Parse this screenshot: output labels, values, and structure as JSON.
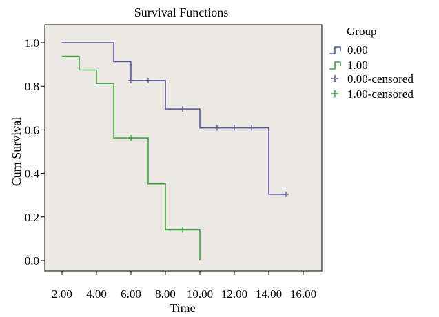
{
  "chart_data": {
    "type": "line",
    "step": true,
    "title": "Survival Functions",
    "xlabel": "Time",
    "ylabel": "Cum Survival",
    "xlim": [
      2,
      16
    ],
    "ylim": [
      0,
      1
    ],
    "xticks": [
      2,
      4,
      6,
      8,
      10,
      12,
      14,
      16
    ],
    "xtick_labels": [
      "2.00",
      "4.00",
      "6.00",
      "8.00",
      "10.00",
      "12.00",
      "14.00",
      "16.00"
    ],
    "yticks": [
      0,
      0.2,
      0.4,
      0.6,
      0.8,
      1.0
    ],
    "ytick_labels": [
      "0.0",
      "0.2",
      "0.4",
      "0.6",
      "0.8",
      "1.0"
    ],
    "plot_background": "#ece8e4",
    "legend": {
      "title": "Group",
      "placement": "right",
      "entries": [
        "0.00",
        "1.00",
        "0.00-censored",
        "1.00-censored"
      ]
    },
    "series": [
      {
        "name": "0.00",
        "color": "#5a5aa0",
        "steps": [
          [
            2,
            1.0
          ],
          [
            5,
            0.913
          ],
          [
            6,
            0.826
          ],
          [
            8,
            0.696
          ],
          [
            10,
            0.609
          ],
          [
            14,
            0.304
          ],
          [
            15,
            0.304
          ]
        ],
        "censored": [
          [
            6,
            0.826
          ],
          [
            7,
            0.826
          ],
          [
            9,
            0.696
          ],
          [
            11,
            0.609
          ],
          [
            12,
            0.609
          ],
          [
            13,
            0.609
          ],
          [
            15,
            0.304
          ]
        ]
      },
      {
        "name": "1.00",
        "color": "#3caa3c",
        "steps": [
          [
            2,
            0.938
          ],
          [
            3,
            0.875
          ],
          [
            4,
            0.813
          ],
          [
            5,
            0.563
          ],
          [
            7,
            0.352
          ],
          [
            8,
            0.141
          ],
          [
            10,
            0.0
          ]
        ],
        "censored": [
          [
            6,
            0.563
          ],
          [
            9,
            0.141
          ]
        ]
      }
    ]
  }
}
